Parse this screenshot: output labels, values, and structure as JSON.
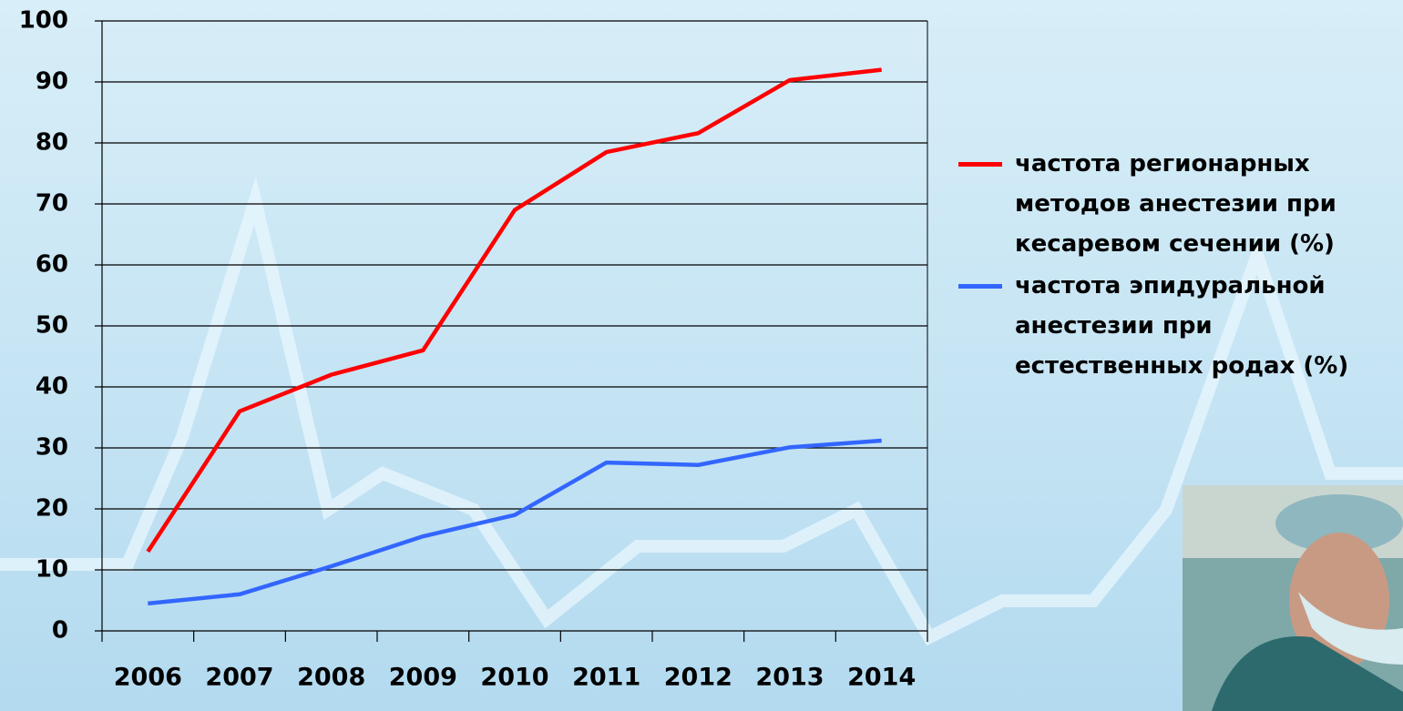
{
  "chart_data": {
    "type": "line",
    "categories": [
      "2006",
      "2007",
      "2008",
      "2009",
      "2010",
      "2011",
      "2012",
      "2013",
      "2014"
    ],
    "series": [
      {
        "name": "частота регионарных методов анестезии при кесаревом сечении (%)",
        "color": "#ff0000",
        "values": [
          13,
          36,
          42,
          46,
          69,
          78.5,
          81.6,
          90.3,
          92
        ]
      },
      {
        "name": "частота эпидуральной анестезии при естественных родах (%)",
        "color": "#3366ff",
        "values": [
          4.5,
          6,
          10.6,
          15.5,
          19,
          27.6,
          27.2,
          30.1,
          31.2
        ]
      }
    ],
    "ylim": [
      0,
      100
    ],
    "yticks": [
      0,
      10,
      20,
      30,
      40,
      50,
      60,
      70,
      80,
      90,
      100
    ],
    "grid": true
  }
}
